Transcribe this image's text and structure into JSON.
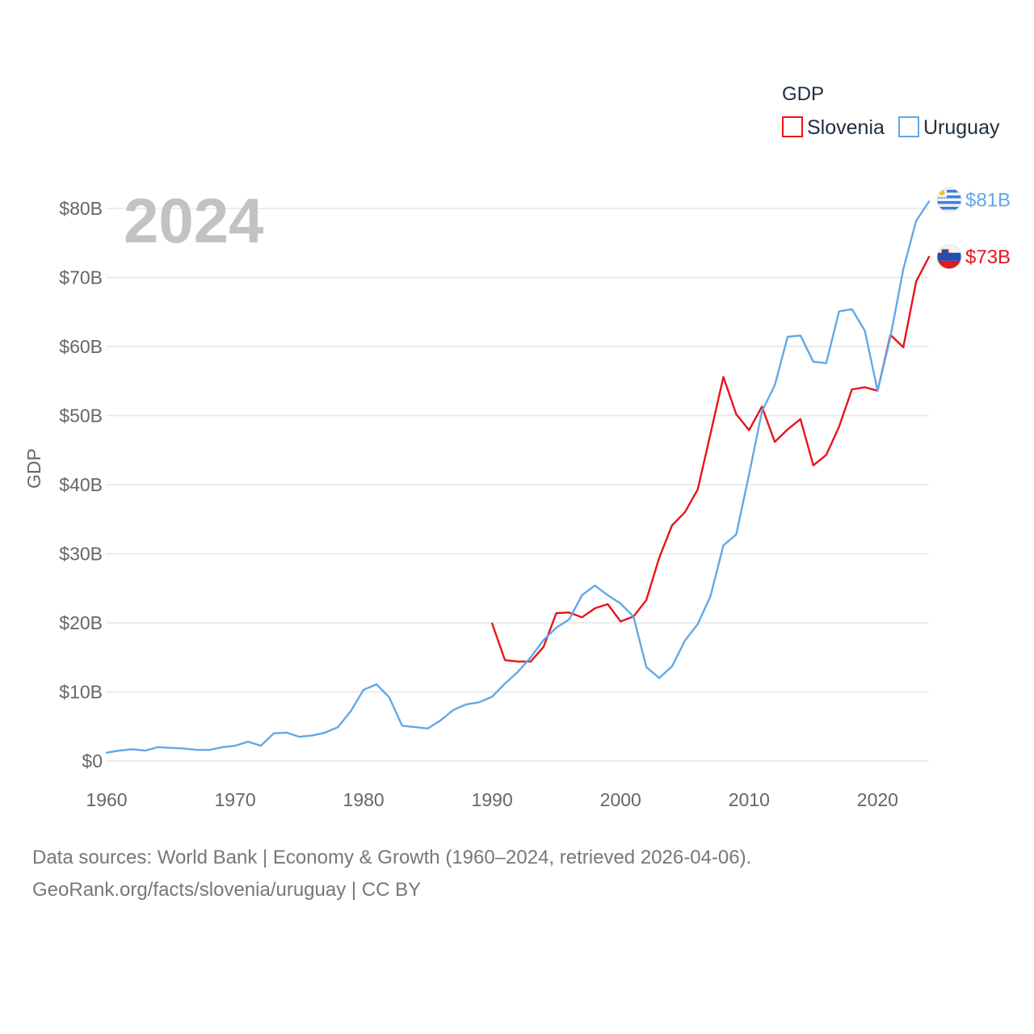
{
  "chart_data": {
    "type": "line",
    "title": "GDP",
    "legend_title": "GDP",
    "ylabel": "GDP",
    "xlabel": "",
    "year_label": "2024",
    "xlim": [
      1960,
      2024
    ],
    "ylim": [
      0,
      80
    ],
    "x_ticks": [
      1960,
      1970,
      1980,
      1990,
      2000,
      2010,
      2020
    ],
    "y_ticks": [
      {
        "value": 0,
        "label": "$0"
      },
      {
        "value": 10,
        "label": "$10B"
      },
      {
        "value": 20,
        "label": "$20B"
      },
      {
        "value": 30,
        "label": "$30B"
      },
      {
        "value": 40,
        "label": "$40B"
      },
      {
        "value": 50,
        "label": "$50B"
      },
      {
        "value": 60,
        "label": "$60B"
      },
      {
        "value": 70,
        "label": "$70B"
      },
      {
        "value": 80,
        "label": "$80B"
      }
    ],
    "series": [
      {
        "name": "Slovenia",
        "color": "#e8141b",
        "end_label": "$73B",
        "flag": "slovenia-flag",
        "x": [
          1990,
          1991,
          1992,
          1993,
          1994,
          1995,
          1996,
          1997,
          1998,
          1999,
          2000,
          2001,
          2002,
          2003,
          2004,
          2005,
          2006,
          2007,
          2008,
          2009,
          2010,
          2011,
          2012,
          2013,
          2014,
          2015,
          2016,
          2017,
          2018,
          2019,
          2020,
          2021,
          2022,
          2023,
          2024
        ],
        "values": [
          19.9,
          14.6,
          14.4,
          14.4,
          16.5,
          21.4,
          21.5,
          20.8,
          22.1,
          22.7,
          20.2,
          20.9,
          23.3,
          29.4,
          34.1,
          36.0,
          39.3,
          47.4,
          55.6,
          50.2,
          47.9,
          51.3,
          46.2,
          48.0,
          49.5,
          42.8,
          44.3,
          48.4,
          53.8,
          54.1,
          53.6,
          61.7,
          59.9,
          69.4,
          73.0
        ]
      },
      {
        "name": "Uruguay",
        "color": "#62a8e8",
        "end_label": "$81B",
        "flag": "uruguay-flag",
        "x": [
          1960,
          1961,
          1962,
          1963,
          1964,
          1965,
          1966,
          1967,
          1968,
          1969,
          1970,
          1971,
          1972,
          1973,
          1974,
          1975,
          1976,
          1977,
          1978,
          1979,
          1980,
          1981,
          1982,
          1983,
          1984,
          1985,
          1986,
          1987,
          1988,
          1989,
          1990,
          1991,
          1992,
          1993,
          1994,
          1995,
          1996,
          1997,
          1998,
          1999,
          2000,
          2001,
          2002,
          2003,
          2004,
          2005,
          2006,
          2007,
          2008,
          2009,
          2010,
          2011,
          2012,
          2013,
          2014,
          2015,
          2016,
          2017,
          2018,
          2019,
          2020,
          2021,
          2022,
          2023,
          2024
        ],
        "values": [
          1.2,
          1.5,
          1.7,
          1.5,
          2.0,
          1.9,
          1.8,
          1.6,
          1.6,
          2.0,
          2.2,
          2.8,
          2.2,
          4.0,
          4.1,
          3.5,
          3.7,
          4.1,
          4.9,
          7.2,
          10.3,
          11.1,
          9.2,
          5.1,
          4.9,
          4.7,
          5.9,
          7.4,
          8.2,
          8.5,
          9.3,
          11.2,
          12.9,
          15.0,
          17.5,
          19.3,
          20.5,
          24.0,
          25.4,
          24.0,
          22.8,
          20.9,
          13.6,
          12.0,
          13.7,
          17.4,
          19.8,
          23.9,
          31.2,
          32.8,
          41.5,
          50.6,
          54.4,
          61.4,
          61.6,
          57.8,
          57.6,
          65.1,
          65.4,
          62.3,
          53.6,
          61.4,
          71.2,
          78.2,
          81.0
        ]
      }
    ]
  },
  "source_line_1": "Data sources: World Bank | Economy & Growth (1960–2024, retrieved 2026-04-06).",
  "source_line_2": "GeoRank.org/facts/slovenia/uruguay | CC BY"
}
